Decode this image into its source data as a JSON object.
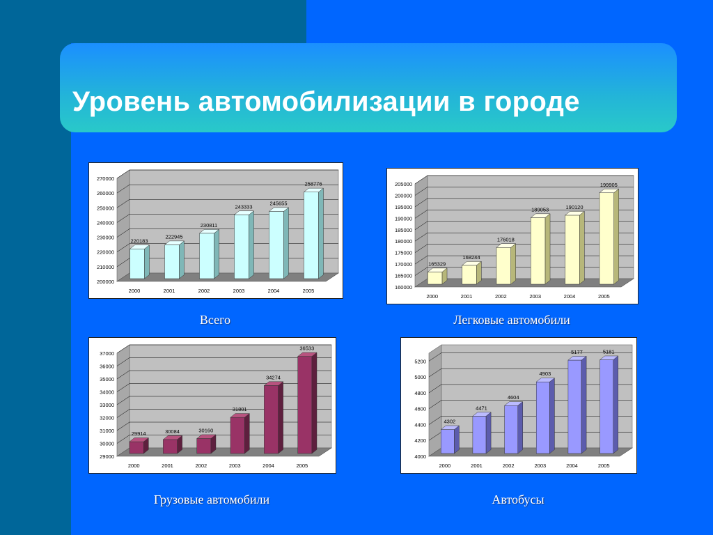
{
  "slide": {
    "title": "Уровень автомобилизации в городе",
    "colors": {
      "background": "#0066ff",
      "dark_band": "#006699"
    }
  },
  "chart_data": [
    {
      "type": "bar",
      "caption": "Всего",
      "categories": [
        "2000",
        "2001",
        "2002",
        "2003",
        "2004",
        "2005"
      ],
      "values": [
        220183,
        222945,
        230811,
        243333,
        245655,
        258776
      ],
      "yticks": [
        200000,
        210000,
        220000,
        230000,
        240000,
        250000,
        260000,
        270000
      ],
      "ylim": [
        200000,
        270000
      ],
      "color": "#ccffff",
      "color_side": "#7fb7b7",
      "color_top": "#e6ffff"
    },
    {
      "type": "bar",
      "caption": "Легковые автомобили",
      "categories": [
        "2000",
        "2001",
        "2002",
        "2003",
        "2004",
        "2005"
      ],
      "values": [
        165329,
        168244,
        176018,
        189053,
        190120,
        199905
      ],
      "yticks": [
        160000,
        165000,
        170000,
        175000,
        180000,
        185000,
        190000,
        195000,
        200000,
        205000
      ],
      "ylim": [
        160000,
        205000
      ],
      "color": "#ffffcc",
      "color_side": "#b7b77a",
      "color_top": "#ffffe6"
    },
    {
      "type": "bar",
      "caption": "Грузовые автомобили",
      "categories": [
        "2000",
        "2001",
        "2002",
        "2003",
        "2004",
        "2005"
      ],
      "values": [
        29914,
        30084,
        30160,
        31801,
        34274,
        36533
      ],
      "yticks": [
        29000,
        30000,
        31000,
        32000,
        33000,
        34000,
        35000,
        36000,
        37000
      ],
      "ylim": [
        29000,
        37000
      ],
      "color": "#993366",
      "color_side": "#5e1f3e",
      "color_top": "#b8537f"
    },
    {
      "type": "bar",
      "caption": "Автобусы",
      "categories": [
        "2000",
        "2001",
        "2002",
        "2003",
        "2004",
        "2005"
      ],
      "values": [
        4302,
        4471,
        4604,
        4903,
        5177,
        5181
      ],
      "yticks": [
        4000,
        4200,
        4400,
        4600,
        4800,
        5000,
        5200
      ],
      "ylim": [
        4000,
        5300
      ],
      "color": "#9999ff",
      "color_side": "#5c5cad",
      "color_top": "#bbbbff"
    }
  ]
}
